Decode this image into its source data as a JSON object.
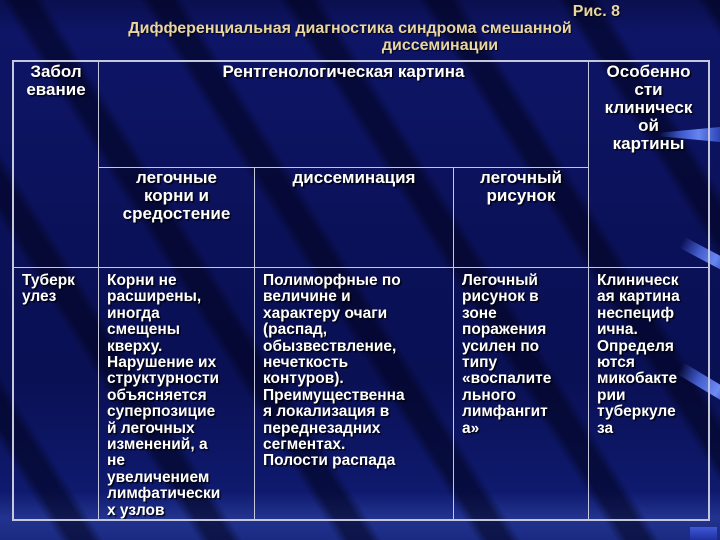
{
  "slide": {
    "figure_label": "Рис. 8",
    "title_line1": "Дифференциальная диагностика синдрома смешанной",
    "title_line2": "диссеминации",
    "colors": {
      "background": "#0B1158",
      "title_text": "#E8D5A2",
      "table_text": "#FFFFFF",
      "table_border": "#C4C8DA",
      "ribbon_accent": "#6585F2"
    }
  },
  "table": {
    "headers": {
      "disease": "Забол\nевание",
      "xray_picture": "Рентгенологическая картина",
      "clinical_features": "Особенно\nсти\nклиническ\nой\nкартины",
      "sub_roots": "легочные\nкорни и\nсредостение",
      "sub_dissemination": "диссеминация",
      "sub_pattern": "легочный\nрисунок"
    },
    "rows": [
      {
        "disease": "Туберк\nулез",
        "roots": "Корни не\nрасширены,\nиногда\nсмещены\nкверху.\nНарушение их\nструктурности\nобъясняется\nсуперпозицие\nй легочных\nизменений, а\nне\nувеличением\nлимфатически\nх узлов",
        "dissemination": "Полиморфные по\nвеличине и\nхарактеру очаги\n(распад,\nобызвествление,\nнечеткость\nконтуров).\nПреимущественна\nя локализация в\nпереднезадних\nсегментах.\nПолости распада",
        "pattern": "Легочный\nрисунок в\nзоне\nпоражения\nусилен по\nтипу\n«воспалите\nльного\nлимфангит\nа»",
        "clinical": "Клиническ\nая картина\nнеспециф\nична.\nОпределя\nются\nмикобакте\nрии\nтуберкуле\nза"
      }
    ]
  }
}
